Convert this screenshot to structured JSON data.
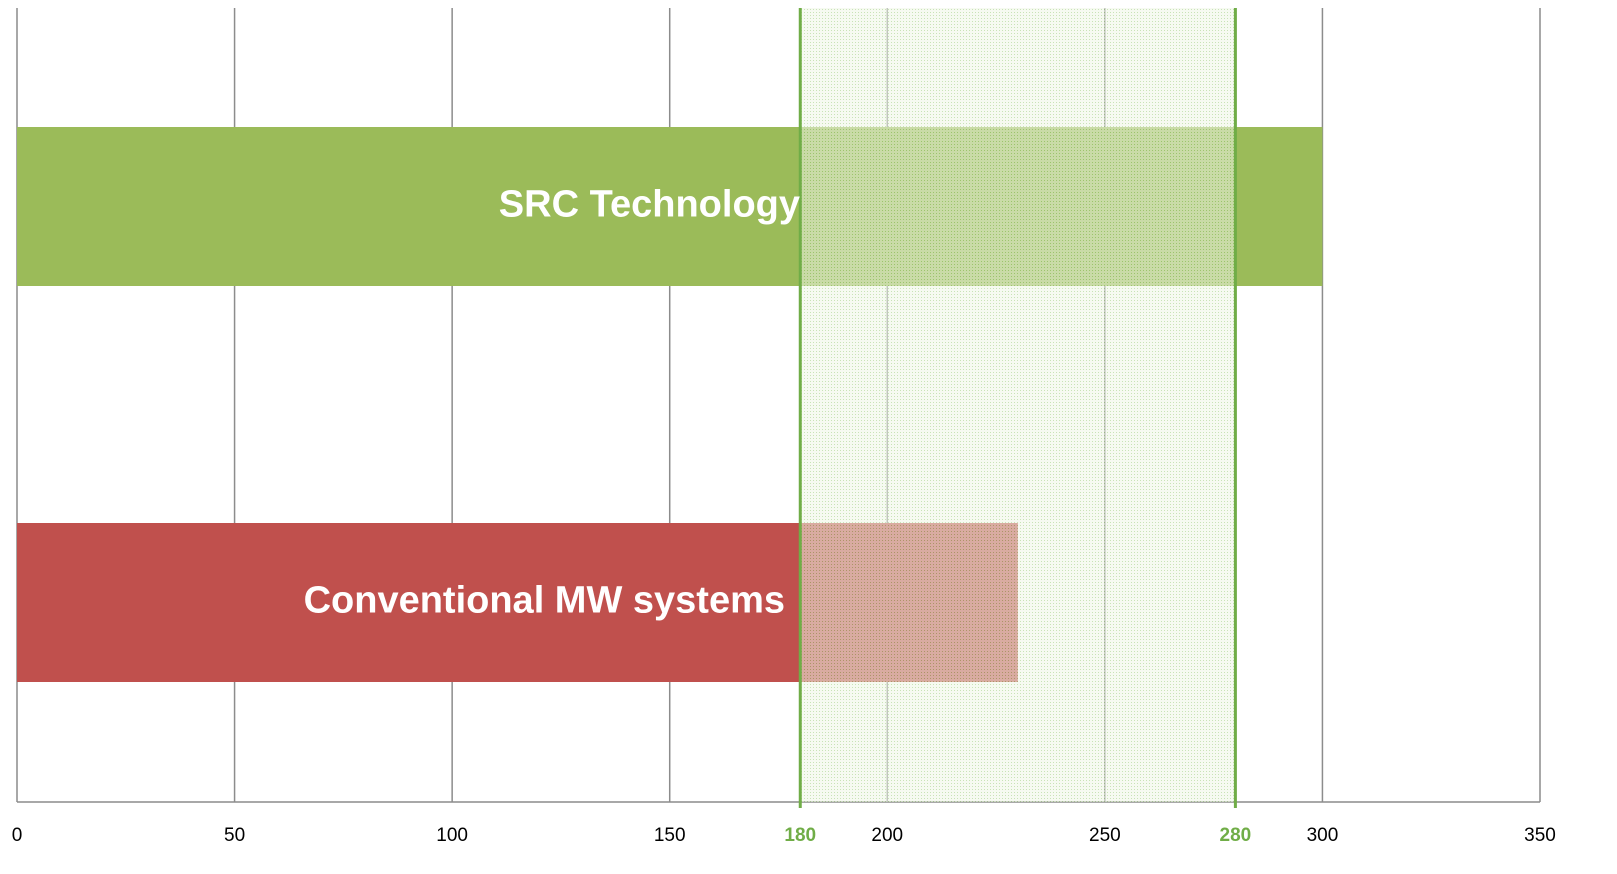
{
  "chart_data": {
    "type": "barh",
    "categories": [
      "SRC Technology",
      "Conventional MW systems"
    ],
    "values": [
      300,
      230
    ],
    "colors": [
      "#9bbb59",
      "#c0504d"
    ],
    "xlim": [
      0,
      350
    ],
    "xticks": [
      0,
      50,
      100,
      150,
      200,
      250,
      300,
      350
    ],
    "grid": true,
    "highlight_band": [
      180,
      280
    ],
    "highlight_color": "#70ad47"
  }
}
